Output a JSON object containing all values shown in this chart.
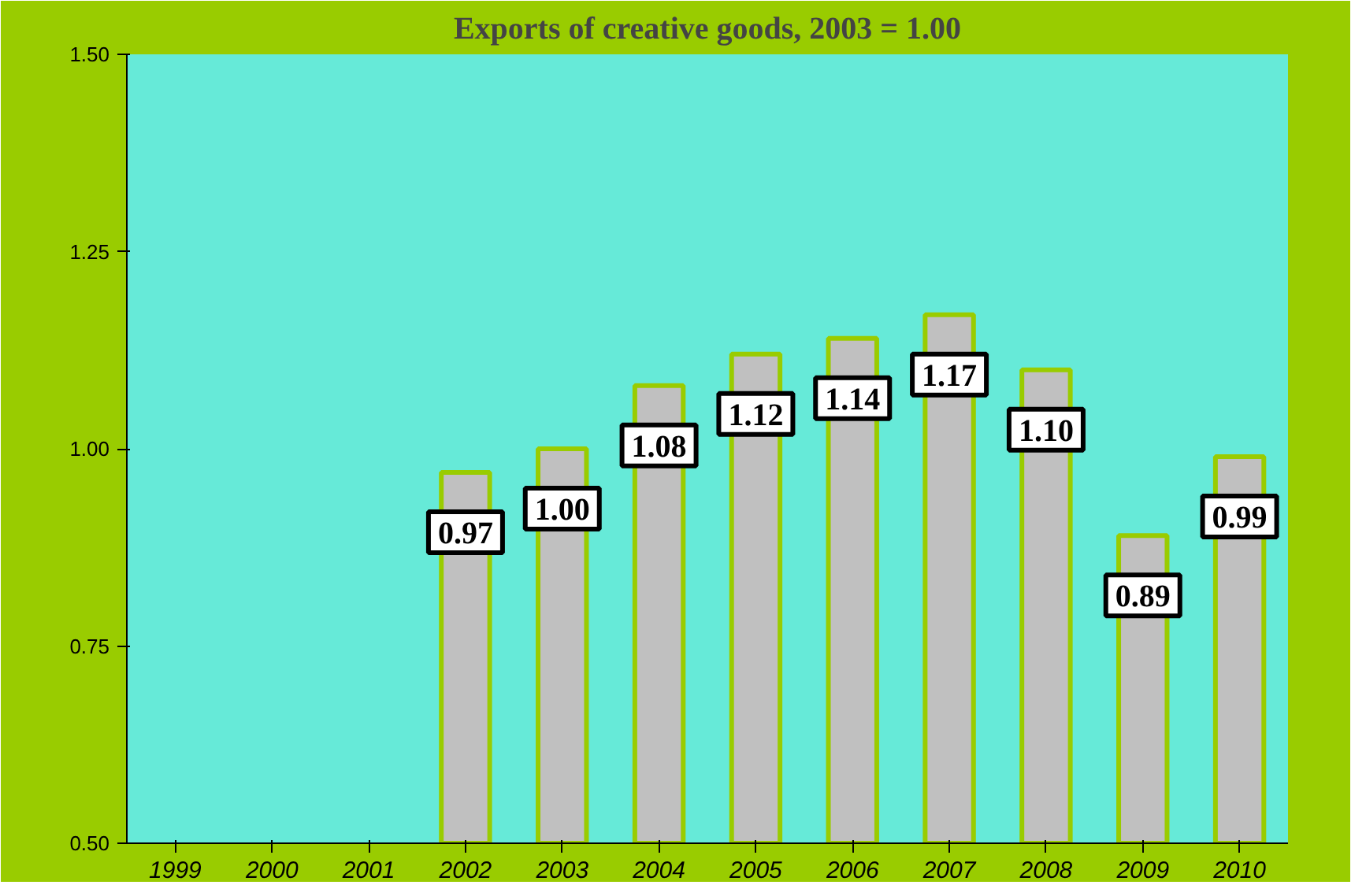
{
  "chart_data": {
    "type": "bar",
    "title": "Exports of creative goods, 2003 = 1.00",
    "categories": [
      "1999",
      "2000",
      "2001",
      "2002",
      "2003",
      "2004",
      "2005",
      "2006",
      "2007",
      "2008",
      "2009",
      "2010"
    ],
    "values": [
      null,
      null,
      null,
      0.97,
      1.0,
      1.08,
      1.12,
      1.14,
      1.17,
      1.1,
      0.89,
      0.99
    ],
    "value_labels": [
      null,
      null,
      null,
      "0.97",
      "1.00",
      "1.08",
      "1.12",
      "1.14",
      "1.17",
      "1.10",
      "0.89",
      "0.99"
    ],
    "color": "#c0c0c0",
    "ylim": [
      0.5,
      1.5
    ],
    "yticks": [
      {
        "value": 0.5,
        "label": "0.50"
      },
      {
        "value": 0.75,
        "label": "0.75"
      },
      {
        "value": 1.0,
        "label": "1.00"
      },
      {
        "value": 1.25,
        "label": "1.25"
      },
      {
        "value": 1.5,
        "label": "1.50"
      }
    ],
    "grid": false
  }
}
